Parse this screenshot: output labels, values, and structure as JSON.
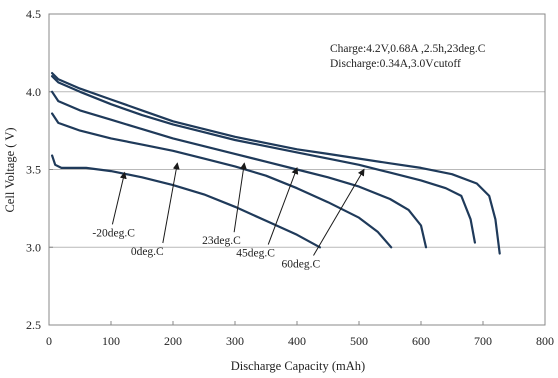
{
  "chart_data": {
    "type": "line",
    "title": "",
    "xlabel": "Discharge Capacity  (mAh)",
    "ylabel": "Cell Voltage ( V)",
    "xlim": [
      0,
      800
    ],
    "ylim": [
      2.5,
      4.5
    ],
    "xticks": [
      0,
      100,
      200,
      300,
      400,
      500,
      600,
      700,
      800
    ],
    "yticks": [
      2.5,
      3.0,
      3.5,
      4.0,
      4.5
    ],
    "xtick_labels": [
      "0",
      "100",
      "200",
      "300",
      "400",
      "500",
      "600",
      "700",
      "800"
    ],
    "ytick_labels": [
      "2.5",
      "3.0",
      "3.5",
      "4.0",
      "4.5"
    ],
    "grid": "horizontal",
    "line_color": "#1f3a5a",
    "annotations": [
      "Charge:4.2V,0.68A ,2.5h,23deg.C",
      "Discharge:0.34A,3.0Vcutoff"
    ],
    "series": [
      {
        "name": "-20deg.C",
        "points": [
          [
            5,
            3.59
          ],
          [
            10,
            3.53
          ],
          [
            20,
            3.51
          ],
          [
            40,
            3.51
          ],
          [
            60,
            3.51
          ],
          [
            100,
            3.49
          ],
          [
            150,
            3.45
          ],
          [
            200,
            3.4
          ],
          [
            250,
            3.34
          ],
          [
            300,
            3.26
          ],
          [
            350,
            3.17
          ],
          [
            400,
            3.08
          ],
          [
            437,
            3.0
          ]
        ],
        "label_pos": [
          70,
          3.07
        ],
        "arrow_to": [
          122,
          3.48
        ]
      },
      {
        "name": "0deg.C",
        "points": [
          [
            5,
            3.86
          ],
          [
            15,
            3.8
          ],
          [
            50,
            3.75
          ],
          [
            100,
            3.7
          ],
          [
            150,
            3.66
          ],
          [
            200,
            3.62
          ],
          [
            250,
            3.57
          ],
          [
            300,
            3.52
          ],
          [
            350,
            3.46
          ],
          [
            400,
            3.38
          ],
          [
            450,
            3.29
          ],
          [
            500,
            3.19
          ],
          [
            530,
            3.1
          ],
          [
            552,
            3.0
          ]
        ],
        "label_pos": [
          132,
          2.95
        ],
        "arrow_to": [
          207,
          3.54
        ]
      },
      {
        "name": "23deg.C",
        "points": [
          [
            5,
            4.0
          ],
          [
            15,
            3.94
          ],
          [
            50,
            3.88
          ],
          [
            100,
            3.82
          ],
          [
            150,
            3.76
          ],
          [
            200,
            3.7
          ],
          [
            250,
            3.65
          ],
          [
            300,
            3.6
          ],
          [
            350,
            3.55
          ],
          [
            400,
            3.5
          ],
          [
            450,
            3.45
          ],
          [
            500,
            3.39
          ],
          [
            550,
            3.31
          ],
          [
            580,
            3.24
          ],
          [
            600,
            3.14
          ],
          [
            608,
            3.0
          ]
        ],
        "label_pos": [
          247,
          3.02
        ],
        "arrow_to": [
          315,
          3.54
        ]
      },
      {
        "name": "45deg.C",
        "points": [
          [
            5,
            4.1
          ],
          [
            15,
            4.06
          ],
          [
            50,
            4.0
          ],
          [
            100,
            3.92
          ],
          [
            150,
            3.85
          ],
          [
            200,
            3.79
          ],
          [
            250,
            3.74
          ],
          [
            300,
            3.69
          ],
          [
            350,
            3.65
          ],
          [
            400,
            3.61
          ],
          [
            450,
            3.57
          ],
          [
            500,
            3.53
          ],
          [
            550,
            3.48
          ],
          [
            600,
            3.43
          ],
          [
            640,
            3.38
          ],
          [
            665,
            3.33
          ],
          [
            680,
            3.18
          ],
          [
            687,
            3.03
          ]
        ],
        "label_pos": [
          302,
          2.94
        ],
        "arrow_to": [
          400,
          3.51
        ]
      },
      {
        "name": "60deg.C",
        "points": [
          [
            5,
            4.12
          ],
          [
            15,
            4.08
          ],
          [
            50,
            4.02
          ],
          [
            100,
            3.95
          ],
          [
            150,
            3.88
          ],
          [
            200,
            3.81
          ],
          [
            250,
            3.76
          ],
          [
            300,
            3.71
          ],
          [
            350,
            3.67
          ],
          [
            400,
            3.63
          ],
          [
            450,
            3.6
          ],
          [
            500,
            3.57
          ],
          [
            550,
            3.54
          ],
          [
            600,
            3.51
          ],
          [
            650,
            3.47
          ],
          [
            690,
            3.41
          ],
          [
            710,
            3.33
          ],
          [
            720,
            3.18
          ],
          [
            727,
            2.96
          ]
        ],
        "label_pos": [
          375,
          2.87
        ],
        "arrow_to": [
          508,
          3.5
        ]
      }
    ]
  }
}
